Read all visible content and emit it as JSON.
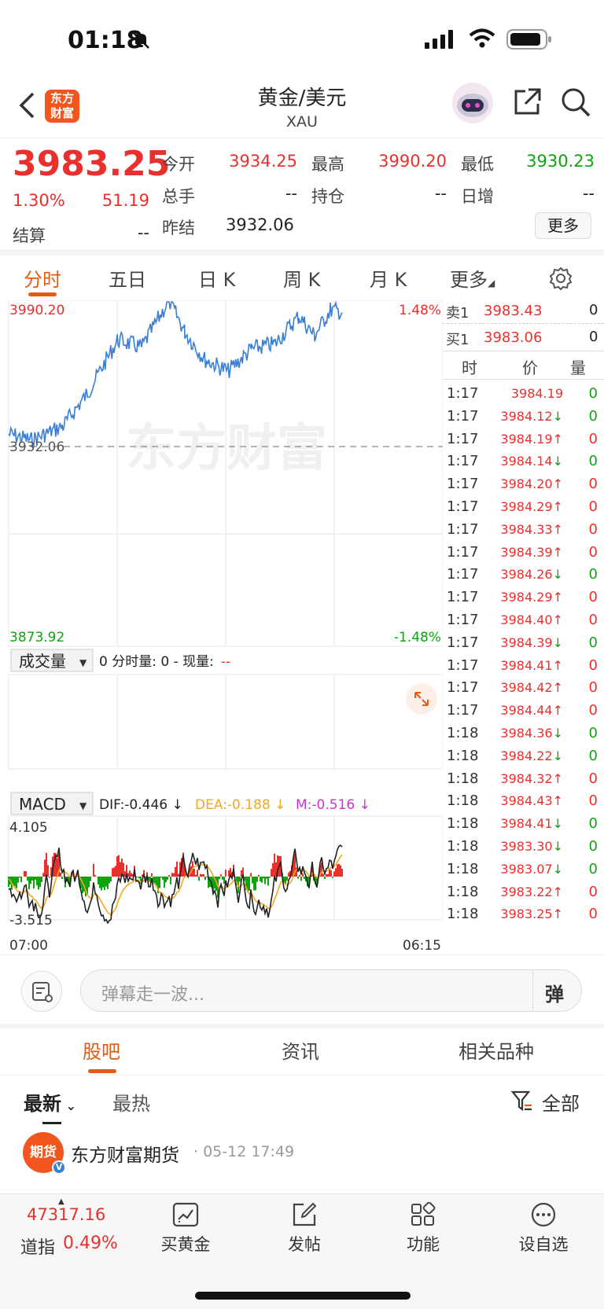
{
  "status": {
    "time": "01:18"
  },
  "nav": {
    "title": "黄金/美元",
    "code": "XAU",
    "logo_text": "东方财富"
  },
  "quote": {
    "price": "3983.25",
    "change_pct": "1.30%",
    "change": "51.19",
    "open_label": "今开",
    "open": "3934.25",
    "high_label": "最高",
    "high": "3990.20",
    "low_label": "最低",
    "low": "3930.23",
    "volume_label": "总手",
    "volume": "--",
    "position_label": "持仓",
    "position": "--",
    "daily_inc_label": "日增",
    "daily_inc": "--",
    "settle_label": "结算",
    "settle": "--",
    "prev_settle_label": "昨结",
    "prev_settle": "3932.06",
    "more_label": "更多"
  },
  "tabs": [
    "分时",
    "五日",
    "日 K",
    "周 K",
    "月 K",
    "更多"
  ],
  "chart": {
    "high_label": "3990.20",
    "low_label": "3873.92",
    "ref_label": "3932.06",
    "pct_high": "1.48%",
    "pct_low": "-1.48%",
    "watermark": "东方财富",
    "volume_selector": "成交量",
    "volume_info": "0 分时量: 0 - 现量: ",
    "volume_info_dash": "--",
    "macd_selector": "MACD",
    "dif": "DIF:-0.446 ↓",
    "dea": "DEA:-0.188 ↓",
    "m": "M:-0.516 ↓",
    "macd_max": "4.105",
    "macd_min": "-3.515",
    "time_start": "07:00",
    "time_end": "06:15",
    "colors": {
      "price_line": "#3a7fd5",
      "up": "#e9302d",
      "down": "#10a310",
      "dif": "#222222",
      "dea": "#f5a623",
      "m": "#cc33cc"
    }
  },
  "chart_data": {
    "type": "line",
    "x": [
      "07:00",
      "06:15"
    ],
    "ylim": [
      3873.92,
      3990.2
    ],
    "reference": 3932.06,
    "series": [],
    "macd_range": [
      -3.515,
      4.105
    ]
  },
  "orderbook": {
    "sell_label": "卖1",
    "sell_price": "3983.43",
    "sell_vol": "0",
    "buy_label": "买1",
    "buy_price": "3983.06",
    "buy_vol": "0",
    "col_time": "时",
    "col_price": "价",
    "col_vol": "量"
  },
  "ticks": [
    {
      "t": "1:17",
      "p": "3984.19",
      "arrow": "",
      "v": "0",
      "c": "red",
      "vc": "green"
    },
    {
      "t": "1:17",
      "p": "3984.12",
      "arrow": "↓",
      "v": "0",
      "c": "red",
      "vc": "green"
    },
    {
      "t": "1:17",
      "p": "3984.19",
      "arrow": "↑",
      "v": "0",
      "c": "red",
      "vc": "red"
    },
    {
      "t": "1:17",
      "p": "3984.14",
      "arrow": "↓",
      "v": "0",
      "c": "red",
      "vc": "green"
    },
    {
      "t": "1:17",
      "p": "3984.20",
      "arrow": "↑",
      "v": "0",
      "c": "red",
      "vc": "red"
    },
    {
      "t": "1:17",
      "p": "3984.29",
      "arrow": "↑",
      "v": "0",
      "c": "red",
      "vc": "red"
    },
    {
      "t": "1:17",
      "p": "3984.33",
      "arrow": "↑",
      "v": "0",
      "c": "red",
      "vc": "red"
    },
    {
      "t": "1:17",
      "p": "3984.39",
      "arrow": "↑",
      "v": "0",
      "c": "red",
      "vc": "red"
    },
    {
      "t": "1:17",
      "p": "3984.26",
      "arrow": "↓",
      "v": "0",
      "c": "red",
      "vc": "green"
    },
    {
      "t": "1:17",
      "p": "3984.29",
      "arrow": "↑",
      "v": "0",
      "c": "red",
      "vc": "red"
    },
    {
      "t": "1:17",
      "p": "3984.40",
      "arrow": "↑",
      "v": "0",
      "c": "red",
      "vc": "red"
    },
    {
      "t": "1:17",
      "p": "3984.39",
      "arrow": "↓",
      "v": "0",
      "c": "red",
      "vc": "green"
    },
    {
      "t": "1:17",
      "p": "3984.41",
      "arrow": "↑",
      "v": "0",
      "c": "red",
      "vc": "red"
    },
    {
      "t": "1:17",
      "p": "3984.42",
      "arrow": "↑",
      "v": "0",
      "c": "red",
      "vc": "red"
    },
    {
      "t": "1:17",
      "p": "3984.44",
      "arrow": "↑",
      "v": "0",
      "c": "red",
      "vc": "red"
    },
    {
      "t": "1:18",
      "p": "3984.36",
      "arrow": "↓",
      "v": "0",
      "c": "red",
      "vc": "green"
    },
    {
      "t": "1:18",
      "p": "3984.22",
      "arrow": "↓",
      "v": "0",
      "c": "red",
      "vc": "green"
    },
    {
      "t": "1:18",
      "p": "3984.32",
      "arrow": "↑",
      "v": "0",
      "c": "red",
      "vc": "red"
    },
    {
      "t": "1:18",
      "p": "3984.43",
      "arrow": "↑",
      "v": "0",
      "c": "red",
      "vc": "red"
    },
    {
      "t": "1:18",
      "p": "3984.41",
      "arrow": "↓",
      "v": "0",
      "c": "red",
      "vc": "green"
    },
    {
      "t": "1:18",
      "p": "3983.30",
      "arrow": "↓",
      "v": "0",
      "c": "red",
      "vc": "green"
    },
    {
      "t": "1:18",
      "p": "3983.07",
      "arrow": "↓",
      "v": "0",
      "c": "red",
      "vc": "green"
    },
    {
      "t": "1:18",
      "p": "3983.22",
      "arrow": "↑",
      "v": "0",
      "c": "red",
      "vc": "red"
    },
    {
      "t": "1:18",
      "p": "3983.25",
      "arrow": "↑",
      "v": "0",
      "c": "red",
      "vc": "red"
    }
  ],
  "danmu": {
    "placeholder": "弹幕走一波...",
    "send_label": "弹"
  },
  "section_tabs": [
    "股吧",
    "资讯",
    "相关品种"
  ],
  "sort": {
    "latest": "最新",
    "hot": "最热",
    "filter": "全部"
  },
  "post": {
    "avatar_text": "期货",
    "author": "东方财富期货",
    "time": "· 05-12 17:49"
  },
  "bottom": {
    "index_value": "47317.16",
    "index_name": "道指",
    "index_change": "0.49%",
    "items": [
      "买黄金",
      "发帖",
      "功能",
      "设自选"
    ]
  }
}
